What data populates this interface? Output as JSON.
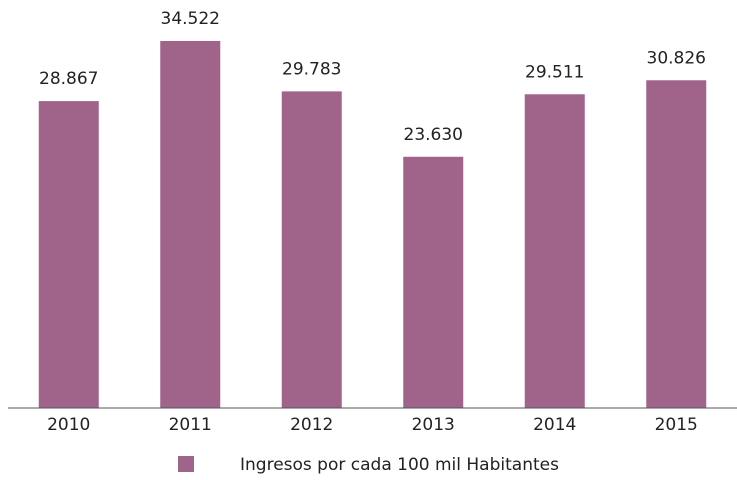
{
  "chart_data": {
    "type": "bar",
    "categories": [
      "2010",
      "2011",
      "2012",
      "2013",
      "2014",
      "2015"
    ],
    "series": [
      {
        "name": "Ingresos por cada 100 mil Habitantes",
        "color": "#a0648a",
        "values": [
          28867,
          34522,
          29783,
          23630,
          29511,
          30826
        ],
        "value_labels": [
          "28.867",
          "34.522",
          "29.783",
          "23.630",
          "29.511",
          "30.826"
        ]
      }
    ],
    "ylim": [
      0,
      38000
    ],
    "legend": "bottom"
  }
}
